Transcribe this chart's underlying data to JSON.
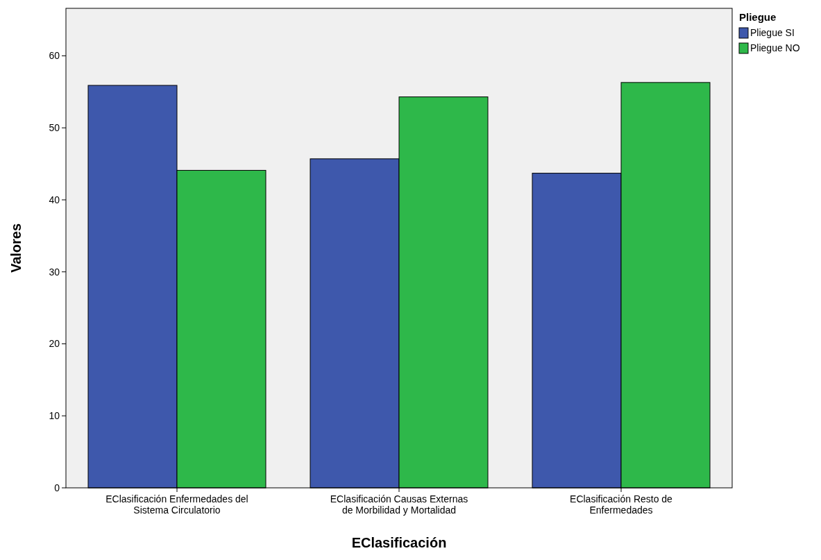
{
  "chart_data": {
    "type": "bar",
    "xlabel": "EClasificación",
    "ylabel": "Valores",
    "legend_title": "Pliegue",
    "categories": [
      "EClasificación Enfermedades del Sistema Circulatorio",
      "EClasificación Causas Externas de Morbilidad y Mortalidad",
      "EClasificación Resto de Enfermedades"
    ],
    "series": [
      {
        "name": "Pliegue SI",
        "color": "#3e58ac",
        "values": [
          55.9,
          45.7,
          43.7
        ]
      },
      {
        "name": "Pliegue NO",
        "color": "#2eb84a",
        "values": [
          44.1,
          54.3,
          56.3
        ]
      }
    ],
    "ylim": [
      0,
      66.6
    ],
    "yticks": [
      0,
      10,
      20,
      30,
      40,
      50,
      60
    ],
    "grid": false,
    "legend": "top right"
  }
}
